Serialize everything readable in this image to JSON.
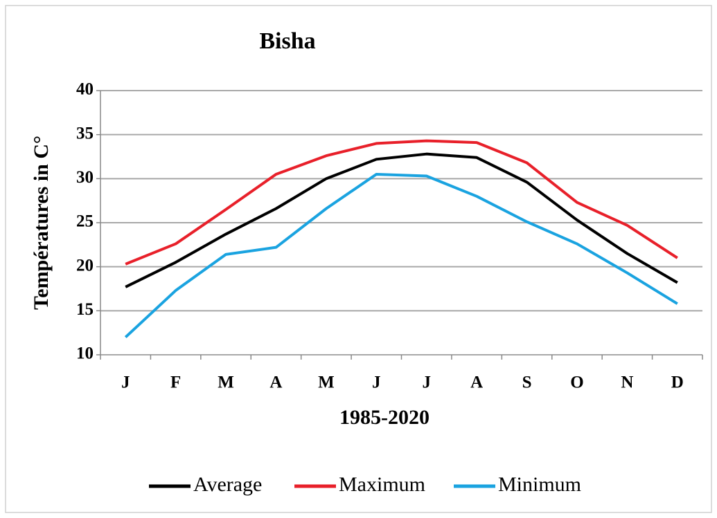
{
  "chart_data": {
    "type": "line",
    "title": "Bisha",
    "x_label": "1985-2020",
    "y_label": "Températures in C°",
    "categories": [
      "J",
      "F",
      "M",
      "A",
      "M",
      "J",
      "J",
      "A",
      "S",
      "O",
      "N",
      "D"
    ],
    "series": [
      {
        "name": "Average",
        "color": "#000000",
        "values": [
          17.7,
          20.5,
          23.7,
          26.6,
          30.0,
          32.2,
          32.8,
          32.4,
          29.6,
          25.3,
          21.5,
          18.2
        ]
      },
      {
        "name": "Maximum",
        "color": "#e8202a",
        "values": [
          20.3,
          22.6,
          26.5,
          30.5,
          32.6,
          34.0,
          34.3,
          34.1,
          31.8,
          27.3,
          24.7,
          21.0
        ]
      },
      {
        "name": "Minimum",
        "color": "#1aa3e0",
        "values": [
          12.0,
          17.3,
          21.4,
          22.2,
          26.6,
          30.5,
          30.3,
          28.0,
          25.1,
          22.6,
          19.3,
          15.8
        ]
      }
    ],
    "ylim": [
      10,
      40
    ],
    "yticks": [
      10,
      15,
      20,
      25,
      30,
      35,
      40
    ],
    "grid": true,
    "legend": "bottom"
  }
}
